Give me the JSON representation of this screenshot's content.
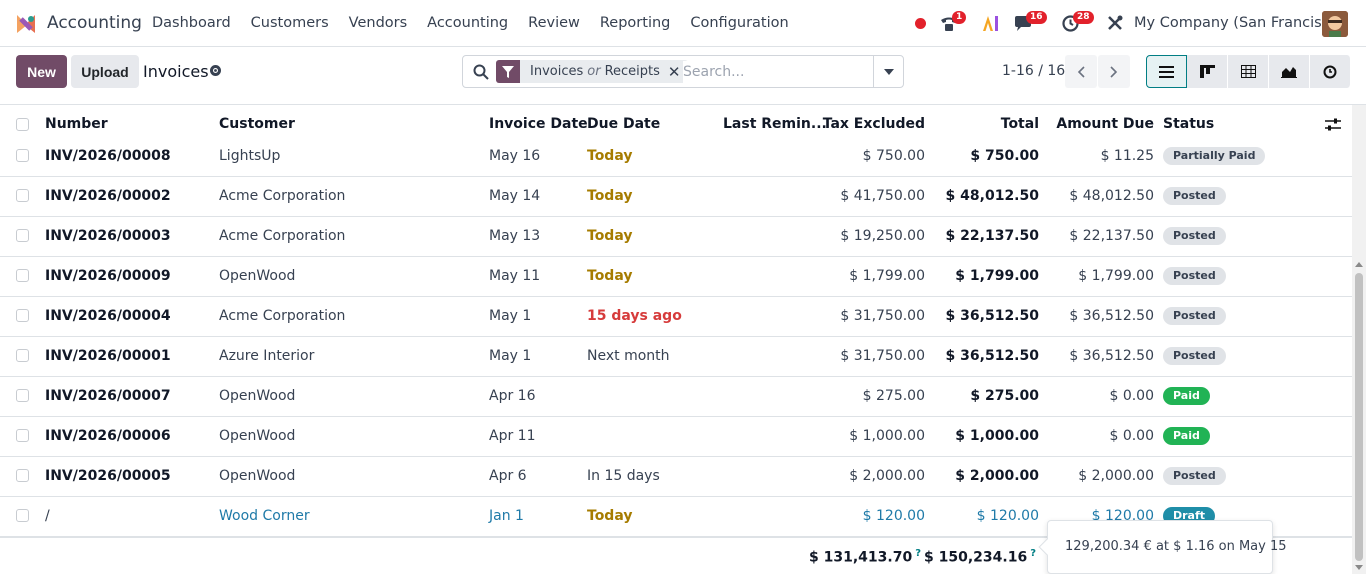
{
  "nav": {
    "app_name": "Accounting",
    "menu": [
      "Dashboard",
      "Customers",
      "Vendors",
      "Accounting",
      "Review",
      "Reporting",
      "Configuration"
    ],
    "badges": {
      "phone": "1",
      "messages": "16",
      "activities": "28"
    },
    "company": "My Company (San Francisco)"
  },
  "control": {
    "new_label": "New",
    "upload_label": "Upload",
    "title": "Invoices",
    "facet_left": "Invoices",
    "facet_or": "or",
    "facet_right": "Receipts",
    "search_placeholder": "Search...",
    "pager": "1-16 / 16"
  },
  "table": {
    "headers": {
      "number": "Number",
      "customer": "Customer",
      "invoice_date": "Invoice Date",
      "due_date": "Due Date",
      "last_reminder": "Last Remin...",
      "tax_excluded": "Tax Excluded",
      "total": "Total",
      "amount_due": "Amount Due",
      "status": "Status"
    },
    "rows": [
      {
        "number": "INV/2026/00008",
        "customer": "LightsUp",
        "invoice_date": "May 16",
        "due_date": "Today",
        "due_color": "#a67c00",
        "tax_excluded": "$ 750.00",
        "total": "$ 750.00",
        "amount_due": "$ 11.25",
        "status": "Partially Paid",
        "status_bg": "#e0e3e7",
        "status_fg": "#374151"
      },
      {
        "number": "INV/2026/00002",
        "customer": "Acme Corporation",
        "invoice_date": "May 14",
        "due_date": "Today",
        "due_color": "#a67c00",
        "tax_excluded": "$ 41,750.00",
        "total": "$ 48,012.50",
        "amount_due": "$ 48,012.50",
        "status": "Posted",
        "status_bg": "#e0e3e7",
        "status_fg": "#374151"
      },
      {
        "number": "INV/2026/00003",
        "customer": "Acme Corporation",
        "invoice_date": "May 13",
        "due_date": "Today",
        "due_color": "#a67c00",
        "tax_excluded": "$ 19,250.00",
        "total": "$ 22,137.50",
        "amount_due": "$ 22,137.50",
        "status": "Posted",
        "status_bg": "#e0e3e7",
        "status_fg": "#374151"
      },
      {
        "number": "INV/2026/00009",
        "customer": "OpenWood",
        "invoice_date": "May 11",
        "due_date": "Today",
        "due_color": "#a67c00",
        "tax_excluded": "$ 1,799.00",
        "total": "$ 1,799.00",
        "amount_due": "$ 1,799.00",
        "status": "Posted",
        "status_bg": "#e0e3e7",
        "status_fg": "#374151"
      },
      {
        "number": "INV/2026/00004",
        "customer": "Acme Corporation",
        "invoice_date": "May 1",
        "due_date": "15 days ago",
        "due_color": "#d63b3b",
        "tax_excluded": "$ 31,750.00",
        "total": "$ 36,512.50",
        "amount_due": "$ 36,512.50",
        "status": "Posted",
        "status_bg": "#e0e3e7",
        "status_fg": "#374151"
      },
      {
        "number": "INV/2026/00001",
        "customer": "Azure Interior",
        "invoice_date": "May 1",
        "due_date": "Next month",
        "due_color": "#374151",
        "tax_excluded": "$ 31,750.00",
        "total": "$ 36,512.50",
        "amount_due": "$ 36,512.50",
        "status": "Posted",
        "status_bg": "#e0e3e7",
        "status_fg": "#374151"
      },
      {
        "number": "INV/2026/00007",
        "customer": "OpenWood",
        "invoice_date": "Apr 16",
        "due_date": "",
        "due_color": "#374151",
        "tax_excluded": "$ 275.00",
        "total": "$ 275.00",
        "amount_due": "$ 0.00",
        "status": "Paid",
        "status_bg": "#21b355",
        "status_fg": "#ffffff"
      },
      {
        "number": "INV/2026/00006",
        "customer": "OpenWood",
        "invoice_date": "Apr 11",
        "due_date": "",
        "due_color": "#374151",
        "tax_excluded": "$ 1,000.00",
        "total": "$ 1,000.00",
        "amount_due": "$ 0.00",
        "status": "Paid",
        "status_bg": "#21b355",
        "status_fg": "#ffffff"
      },
      {
        "number": "INV/2026/00005",
        "customer": "OpenWood",
        "invoice_date": "Apr 6",
        "due_date": "In 15 days",
        "due_color": "#374151",
        "tax_excluded": "$ 2,000.00",
        "total": "$ 2,000.00",
        "amount_due": "$ 2,000.00",
        "status": "Posted",
        "status_bg": "#e0e3e7",
        "status_fg": "#374151"
      },
      {
        "number": "/",
        "customer": "Wood Corner",
        "invoice_date": "Jan 1",
        "due_date": "Today",
        "due_color": "#a67c00",
        "tax_excluded": "$ 120.00",
        "total": "$ 120.00",
        "amount_due": "$ 120.00",
        "status": "Draft",
        "status_bg": "#1f8ea8",
        "status_fg": "#ffffff",
        "draft": true
      }
    ],
    "footer": {
      "tax_excluded_total": "$ 131,413.70",
      "total_total": "$ 150,234.16",
      "qmark": "?"
    }
  },
  "tooltip": {
    "text": "129,200.34 € at $ 1.16 on May 15"
  },
  "colors": {
    "brand": "#714b67",
    "accent": "#017e84",
    "draft_link": "#1f7aa8"
  }
}
